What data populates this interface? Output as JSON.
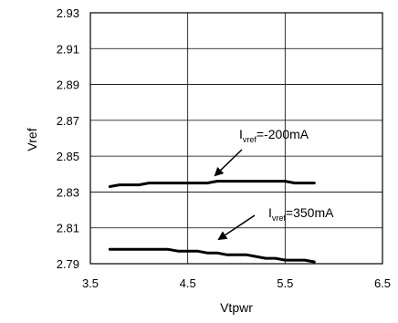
{
  "chart_data": {
    "type": "line",
    "title": "",
    "xlabel": "Vtpwr",
    "ylabel": "Vref",
    "xlim": [
      3.5,
      6.5
    ],
    "ylim": [
      2.79,
      2.93
    ],
    "xticks": [
      "3.5",
      "4.5",
      "5.5",
      "6.5"
    ],
    "yticks": [
      "2.93",
      "2.91",
      "2.89",
      "2.87",
      "2.85",
      "2.83",
      "2.81",
      "2.79"
    ],
    "grid": true,
    "series": [
      {
        "annotation_main": "I",
        "annotation_sub": "vref",
        "annotation_rest": "=-200mA",
        "x": [
          3.7,
          3.8,
          3.9,
          4.0,
          4.1,
          4.2,
          4.3,
          4.4,
          4.5,
          4.6,
          4.7,
          4.8,
          4.9,
          5.0,
          5.1,
          5.2,
          5.3,
          5.4,
          5.5,
          5.6,
          5.7,
          5.8
        ],
        "y": [
          2.833,
          2.834,
          2.834,
          2.834,
          2.835,
          2.835,
          2.835,
          2.835,
          2.835,
          2.835,
          2.835,
          2.836,
          2.836,
          2.836,
          2.836,
          2.836,
          2.836,
          2.836,
          2.836,
          2.835,
          2.835,
          2.835
        ]
      },
      {
        "annotation_main": "I",
        "annotation_sub": "vref",
        "annotation_rest": "=350mA",
        "x": [
          3.7,
          3.8,
          3.9,
          4.0,
          4.1,
          4.2,
          4.3,
          4.4,
          4.5,
          4.6,
          4.7,
          4.8,
          4.9,
          5.0,
          5.1,
          5.2,
          5.3,
          5.4,
          5.5,
          5.6,
          5.7,
          5.8
        ],
        "y": [
          2.798,
          2.798,
          2.798,
          2.798,
          2.798,
          2.798,
          2.798,
          2.797,
          2.797,
          2.797,
          2.796,
          2.796,
          2.795,
          2.795,
          2.795,
          2.794,
          2.793,
          2.793,
          2.792,
          2.792,
          2.792,
          2.791
        ]
      }
    ],
    "colors": {
      "line": "#000000",
      "grid": "#000000",
      "background": "#ffffff"
    }
  }
}
